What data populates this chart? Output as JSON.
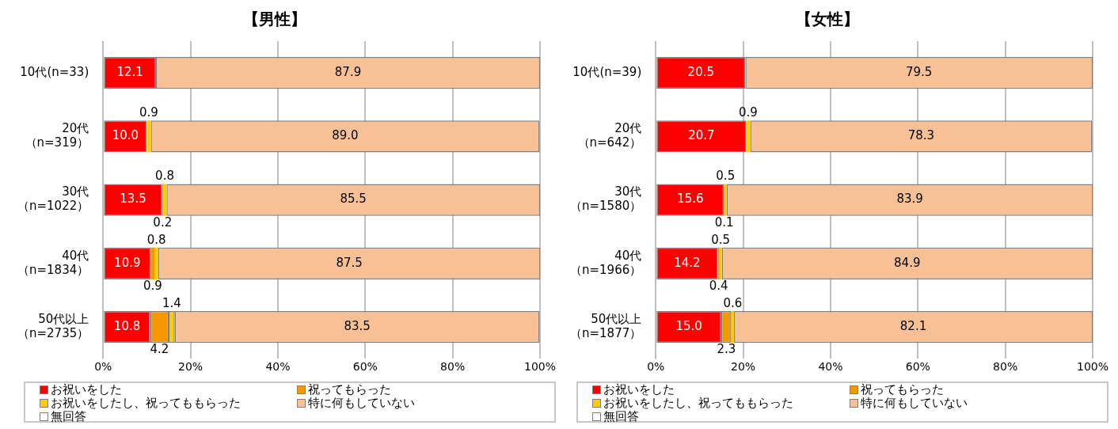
{
  "chart_data": [
    {
      "type": "bar",
      "orientation": "horizontal",
      "stacked": true,
      "title": "【男性】",
      "categories": [
        "10代(n=33)",
        "20代（n=319）",
        "30代（n=1022）",
        "40代（n=1834）",
        "50代以上（n=2735）"
      ],
      "series": [
        {
          "name": "お祝いをした",
          "color": "#ff0000",
          "values": [
            12.1,
            10.0,
            13.5,
            10.9,
            10.8
          ],
          "value_labels": [
            "12.1",
            "10.0",
            "13.5",
            "10.9",
            "10.8"
          ]
        },
        {
          "name": "祝ってもらった",
          "color": "#f39800",
          "values": [
            null,
            null,
            0.2,
            0.9,
            4.2
          ],
          "value_labels": [
            null,
            null,
            "0.2",
            "0.9",
            "4.2"
          ]
        },
        {
          "name": "お祝いをしたし、祝ってももらった",
          "color": "#ffcc00",
          "values": [
            null,
            0.9,
            0.8,
            0.8,
            1.4
          ],
          "value_labels": [
            null,
            "0.9",
            "0.8",
            "0.8",
            "1.4"
          ]
        },
        {
          "name": "特に何もしていない",
          "color": "#f8c195",
          "values": [
            87.9,
            89.0,
            85.5,
            87.5,
            83.5
          ],
          "value_labels": [
            "87.9",
            "89.0",
            "85.5",
            "87.5",
            "83.5"
          ]
        },
        {
          "name": "無回答",
          "color": "#ffffff",
          "values": [
            null,
            null,
            null,
            null,
            null
          ]
        }
      ],
      "xlim": [
        0,
        100
      ],
      "xticks": [
        {
          "value": 0,
          "label": "0%"
        },
        {
          "value": 20,
          "label": "20%"
        },
        {
          "value": 40,
          "label": "40%"
        },
        {
          "value": 60,
          "label": "60%"
        },
        {
          "value": 80,
          "label": "80%"
        },
        {
          "value": 100,
          "label": "100%"
        }
      ],
      "grid": "x",
      "legend": "bottom"
    },
    {
      "type": "bar",
      "orientation": "horizontal",
      "stacked": true,
      "title": "【女性】",
      "categories": [
        "10代(n=39)",
        "20代（n=642）",
        "30代（n=1580）",
        "40代（n=1966）",
        "50代以上（n=1877）"
      ],
      "series": [
        {
          "name": "お祝いをした",
          "color": "#ff0000",
          "values": [
            20.5,
            20.7,
            15.6,
            14.2,
            15.0
          ],
          "value_labels": [
            "20.5",
            "20.7",
            "15.6",
            "14.2",
            "15.0"
          ]
        },
        {
          "name": "祝ってもらった",
          "color": "#f39800",
          "values": [
            null,
            null,
            0.1,
            0.4,
            2.3
          ],
          "value_labels": [
            null,
            null,
            "0.1",
            "0.4",
            "2.3"
          ]
        },
        {
          "name": "お祝いをしたし、祝ってももらった",
          "color": "#ffcc00",
          "values": [
            null,
            0.9,
            0.5,
            0.5,
            0.6
          ],
          "value_labels": [
            null,
            "0.9",
            "0.5",
            "0.5",
            "0.6"
          ]
        },
        {
          "name": "特に何もしていない",
          "color": "#f8c195",
          "values": [
            79.5,
            78.3,
            83.9,
            84.9,
            82.1
          ],
          "value_labels": [
            "79.5",
            "78.3",
            "83.9",
            "84.9",
            "82.1"
          ]
        },
        {
          "name": "無回答",
          "color": "#ffffff",
          "values": [
            null,
            null,
            null,
            null,
            null
          ]
        }
      ],
      "xlim": [
        0,
        100
      ],
      "xticks": [
        {
          "value": 0,
          "label": "0%"
        },
        {
          "value": 20,
          "label": "20%"
        },
        {
          "value": 40,
          "label": "40%"
        },
        {
          "value": 60,
          "label": "60%"
        },
        {
          "value": 80,
          "label": "80%"
        },
        {
          "value": 100,
          "label": "100%"
        }
      ],
      "grid": "x",
      "legend": "bottom"
    }
  ]
}
